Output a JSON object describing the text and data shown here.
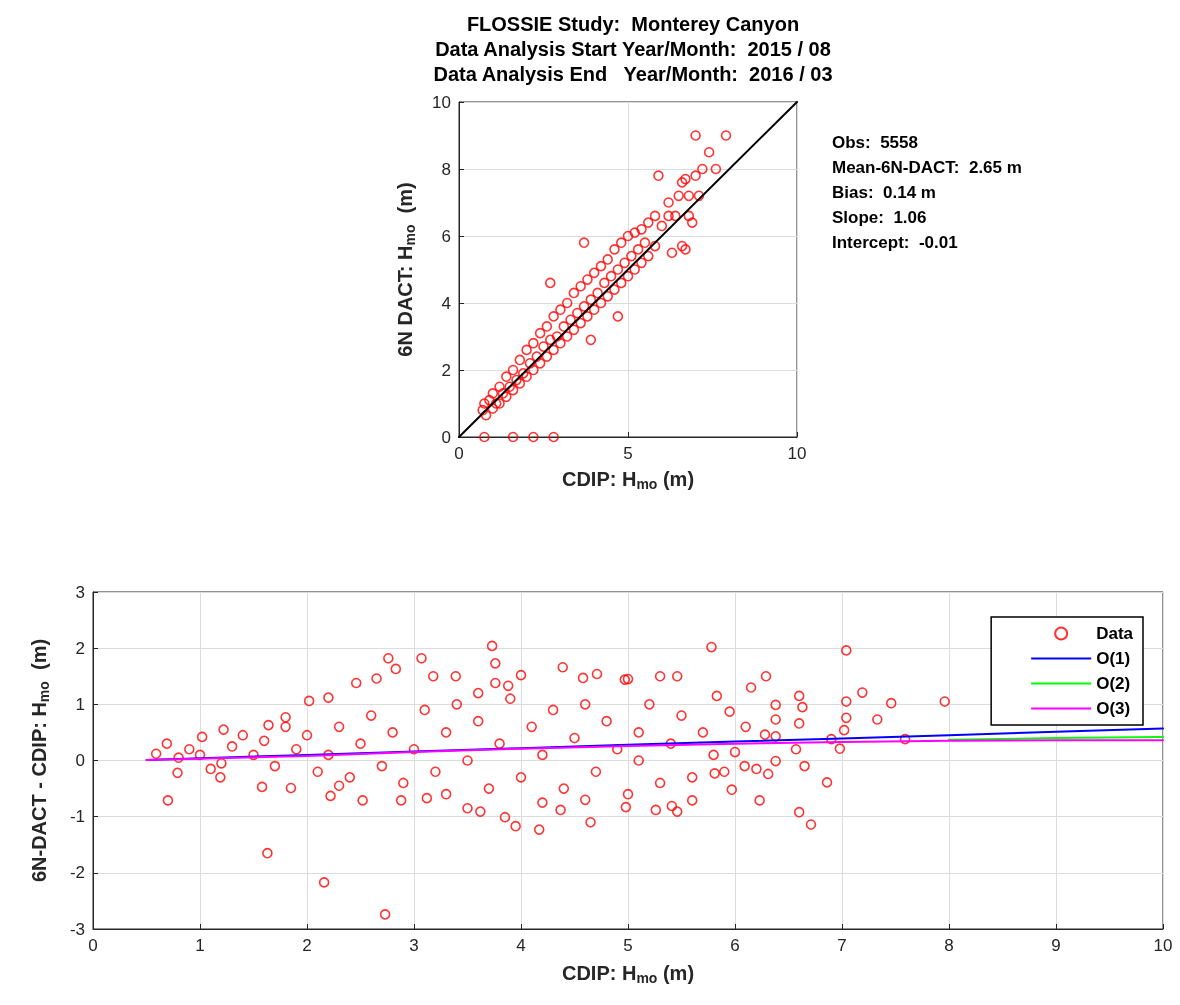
{
  "chart_data": [
    {
      "type": "scatter",
      "title": "FLOSSIE Study:  Monterey Canyon\nData Analysis Start Year/Month:  2015 / 08\nData Analysis End   Year/Month:  2016 / 03",
      "xlabel": "CDIP: H$_{mo}$ (m)",
      "ylabel": "6N DACT: H$_{mo}$  (m)",
      "annotations": [
        "Obs:  5558",
        "Mean-6N-DACT:  2.65 m",
        "Bias:  0.14 m",
        "Slope:  1.06",
        "Intercept:  -0.01"
      ],
      "xlim": [
        0,
        10
      ],
      "xticks": [
        0,
        5,
        10
      ],
      "ylim": [
        0,
        10
      ],
      "yticks": [
        0,
        2,
        4,
        6,
        8,
        10
      ],
      "grid": true,
      "series": [
        {
          "type": "scatter",
          "marker": "circle",
          "color": "#ff0000",
          "x": [
            0.7,
            0.75,
            0.8,
            0.9,
            1.0,
            1.0,
            1.1,
            1.2,
            1.2,
            1.3,
            1.4,
            1.4,
            1.5,
            1.6,
            1.6,
            1.7,
            1.8,
            1.8,
            1.9,
            2.0,
            2.0,
            2.1,
            2.2,
            2.2,
            2.3,
            2.4,
            2.4,
            2.5,
            2.6,
            2.6,
            2.7,
            2.8,
            2.8,
            2.9,
            3.0,
            3.0,
            3.1,
            3.2,
            3.2,
            3.3,
            3.4,
            3.4,
            3.5,
            3.6,
            3.6,
            3.7,
            3.8,
            3.8,
            3.9,
            4.0,
            4.0,
            4.1,
            4.2,
            4.2,
            4.3,
            4.4,
            4.4,
            4.5,
            4.6,
            4.6,
            4.7,
            4.8,
            4.8,
            4.9,
            5.0,
            5.0,
            5.1,
            5.2,
            5.2,
            5.3,
            5.4,
            5.4,
            5.5,
            5.6,
            5.6,
            5.8,
            5.8,
            6.0,
            6.2,
            6.2,
            6.4,
            6.5,
            6.6,
            6.7,
            6.8,
            6.9,
            7.0,
            7.1,
            7.2,
            7.4,
            7.6,
            7.0,
            7.9,
            5.9,
            6.6,
            6.7,
            6.3,
            3.7,
            2.7,
            4.7,
            3.9,
            0.75,
            1.6,
            2.2,
            2.8,
            6.8
          ],
          "values": [
            0.8,
            1.0,
            0.65,
            1.1,
            0.85,
            1.3,
            1.0,
            1.5,
            1.0,
            1.3,
            1.8,
            1.2,
            1.5,
            2.0,
            1.4,
            1.7,
            2.3,
            1.6,
            1.9,
            2.6,
            1.8,
            2.2,
            2.8,
            2.0,
            2.4,
            3.1,
            2.2,
            2.7,
            3.3,
            2.4,
            2.9,
            3.6,
            2.6,
            3.0,
            3.8,
            2.8,
            3.3,
            4.0,
            3.0,
            3.5,
            4.3,
            3.2,
            3.7,
            4.5,
            3.4,
            3.9,
            4.7,
            3.6,
            4.1,
            4.9,
            3.8,
            4.3,
            5.1,
            4.0,
            4.6,
            5.3,
            4.2,
            4.8,
            5.6,
            4.4,
            5.0,
            5.8,
            4.6,
            5.2,
            6.0,
            4.8,
            5.4,
            6.1,
            5.0,
            5.6,
            6.2,
            5.2,
            5.8,
            6.4,
            5.4,
            6.6,
            5.7,
            6.3,
            6.6,
            7.0,
            6.6,
            7.2,
            7.6,
            7.7,
            7.2,
            6.4,
            7.8,
            7.2,
            8.0,
            8.5,
            8.0,
            9.0,
            9.0,
            7.8,
            5.7,
            5.6,
            5.5,
            5.8,
            4.6,
            3.6,
            2.9,
            0.0,
            0.0,
            0.0,
            0.0,
            6.6
          ]
        },
        {
          "type": "line",
          "marker": "none",
          "color": "#000000",
          "x": [
            0,
            10
          ],
          "values": [
            0,
            10
          ]
        }
      ]
    },
    {
      "type": "scatter",
      "xlabel": "CDIP: H$_{mo}$ (m)",
      "ylabel": "6N-DACT - CDIP: H$_{mo}$  (m)",
      "xlim": [
        0,
        10
      ],
      "xticks": [
        0,
        1,
        2,
        3,
        4,
        5,
        6,
        7,
        8,
        9,
        10
      ],
      "ylim": [
        -3,
        3
      ],
      "yticks": [
        -3,
        -2,
        -1,
        0,
        1,
        2,
        3
      ],
      "grid": true,
      "legend": "top right",
      "series": [
        {
          "type": "scatter",
          "name": "Data",
          "marker": "circle",
          "color": "#ff0000",
          "x": [
            1.0,
            1.2,
            1.3,
            1.5,
            1.6,
            1.7,
            1.9,
            2.0,
            2.1,
            2.2,
            2.3,
            2.4,
            2.5,
            2.6,
            2.7,
            2.8,
            2.9,
            3.0,
            3.1,
            3.2,
            3.3,
            3.4,
            3.5,
            3.6,
            3.7,
            3.8,
            3.9,
            4.0,
            4.1,
            4.2,
            4.3,
            4.4,
            4.5,
            4.6,
            4.7,
            4.8,
            4.9,
            5.0,
            5.1,
            5.2,
            5.3,
            5.4,
            5.5,
            5.6,
            5.7,
            5.8,
            5.9,
            6.0,
            6.1,
            6.2,
            0.8,
            0.9,
            1.1,
            1.4,
            1.8,
            2.3,
            3.3,
            3.6,
            4.2,
            4.6,
            5.0,
            5.1,
            3.73,
            2.76,
            3.07,
            2.83,
            2.65,
            3.76,
            4.39,
            4.0,
            3.18,
            3.39,
            2.46,
            3.76,
            3.88,
            2.02,
            2.2,
            1.8,
            1.64,
            1.02,
            1.22,
            0.69,
            0.59,
            0.7,
            0.79,
            1.19,
            1.58,
            1.85,
            2.22,
            2.52,
            2.88,
            3.12,
            3.5,
            3.62,
            3.85,
            3.95,
            4.17,
            4.37,
            1.63,
            2.16,
            2.73,
            5.78,
            7.04,
            7.96,
            7.19,
            7.46,
            7.04,
            7.04,
            7.33,
            7.02,
            7.59,
            6.98,
            6.86,
            6.71,
            6.6,
            6.65,
            6.6,
            6.63,
            6.6,
            6.38,
            6.38,
            6.38,
            6.38,
            6.23,
            6.15,
            6.29,
            6.28,
            6.57,
            6.9,
            6.31,
            6.09,
            5.97,
            5.81,
            5.83,
            5.95,
            5.46,
            5.3,
            4.97,
            4.71,
            4.58,
            4.65,
            4.98,
            5.46,
            5.26,
            5.41,
            5.6
          ],
          "values": [
            0.1,
            -0.05,
            0.25,
            0.1,
            0.35,
            -0.1,
            0.2,
            0.45,
            -0.2,
            0.1,
            0.6,
            -0.3,
            0.3,
            0.8,
            -0.1,
            0.5,
            -0.4,
            0.2,
            0.9,
            -0.2,
            0.5,
            1.0,
            0.0,
            0.7,
            -0.5,
            0.3,
            1.1,
            -0.3,
            0.6,
            0.1,
            0.9,
            -0.5,
            0.4,
            1.0,
            -0.2,
            0.7,
            0.2,
            -0.6,
            0.5,
            1.0,
            -0.4,
            0.3,
            0.8,
            -0.3,
            0.5,
            0.1,
            -0.2,
            0.15,
            0.6,
            -0.15,
            0.05,
            0.2,
            -0.15,
            0.45,
            0.6,
            -0.45,
            -0.6,
            1.2,
            -0.75,
            -0.7,
            1.45,
            0.0,
            2.04,
            1.82,
            1.82,
            1.63,
            1.46,
            1.73,
            1.66,
            1.52,
            1.5,
            1.5,
            1.38,
            1.38,
            1.33,
            1.06,
            1.12,
            0.77,
            0.63,
            0.42,
            0.55,
            0.3,
            0.12,
            -0.71,
            -0.22,
            -0.3,
            -0.47,
            -0.49,
            -0.63,
            -0.71,
            -0.71,
            -0.67,
            -0.85,
            -0.91,
            -1.01,
            -1.17,
            -1.23,
            -0.88,
            -1.65,
            -2.17,
            -2.74,
            2.02,
            1.96,
            1.05,
            1.21,
            1.02,
            1.05,
            0.76,
            0.73,
            0.54,
            0.38,
            0.21,
            -0.39,
            -1.14,
            -0.92,
            -0.1,
            1.15,
            0.95,
            0.66,
            0.99,
            0.73,
            0.43,
            -0.01,
            -0.71,
            1.3,
            1.5,
            0.46,
            0.2,
            0.38,
            -0.24,
            -0.1,
            -0.52,
            -0.23,
            1.15,
            0.87,
            1.5,
            1.5,
            1.44,
            1.54,
            1.47,
            -1.1,
            -0.83,
            -0.91,
            -0.88,
            -0.81,
            -0.71
          ]
        },
        {
          "type": "line",
          "name": "O(1)",
          "marker": "none",
          "color": "#0000ff",
          "x": [
            0.5,
            2,
            3,
            4,
            5,
            6,
            7,
            8,
            9,
            10
          ],
          "values": [
            0.01,
            0.1,
            0.16,
            0.22,
            0.28,
            0.34,
            0.39,
            0.45,
            0.51,
            0.57
          ]
        },
        {
          "type": "line",
          "name": "O(2)",
          "marker": "none",
          "color": "#00ff00",
          "x": [
            8,
            9,
            10
          ],
          "values": [
            0.37,
            0.4,
            0.42
          ]
        },
        {
          "type": "line",
          "name": "O(3)",
          "marker": "none",
          "color": "#ff00ff",
          "x": [
            0.5,
            2,
            3,
            4,
            5,
            6,
            7,
            8,
            9,
            10
          ],
          "values": [
            0.01,
            0.08,
            0.15,
            0.21,
            0.26,
            0.3,
            0.33,
            0.35,
            0.36,
            0.36
          ]
        }
      ]
    }
  ]
}
